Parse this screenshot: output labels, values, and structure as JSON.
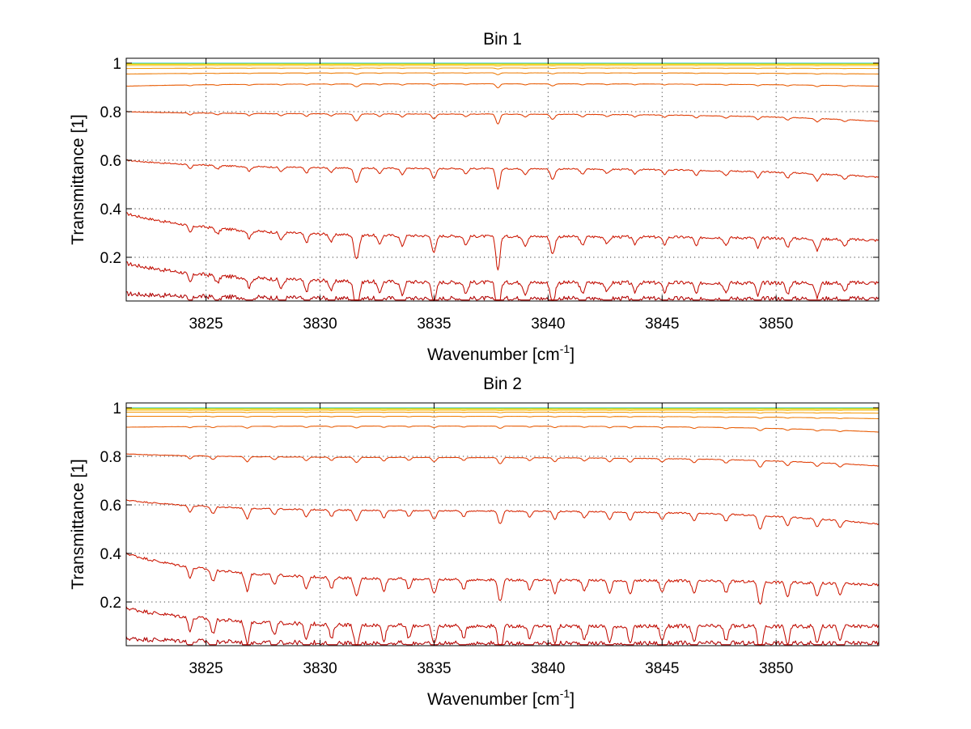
{
  "chart_data": [
    {
      "type": "line",
      "title": "Bin 1",
      "xlabel": "Wavenumber [cm",
      "xlabel_sup": "-1",
      "xlabel_end": "]",
      "ylabel": "Transmittance [1]",
      "xlim": [
        3821.5,
        3854.5
      ],
      "ylim": [
        0.02,
        1.02
      ],
      "xticks": [
        3825,
        3830,
        3835,
        3840,
        3845,
        3850
      ],
      "xtick_labels": [
        "3825",
        "3830",
        "3835",
        "3840",
        "3845",
        "3850"
      ],
      "yticks": [
        0.2,
        0.4,
        0.6,
        0.8,
        1.0
      ],
      "ytick_labels": [
        "0.2",
        "0.4",
        "0.6",
        "0.8",
        "1"
      ],
      "grid": true,
      "line_dips": [
        {
          "x": 3824.3,
          "d": 0.5,
          "w": 0.12
        },
        {
          "x": 3825.5,
          "d": 0.4,
          "w": 0.12
        },
        {
          "x": 3826.9,
          "d": 0.5,
          "w": 0.12
        },
        {
          "x": 3828.3,
          "d": 0.5,
          "w": 0.12
        },
        {
          "x": 3829.4,
          "d": 0.6,
          "w": 0.12
        },
        {
          "x": 3830.5,
          "d": 0.5,
          "w": 0.12
        },
        {
          "x": 3831.6,
          "d": 1.6,
          "w": 0.15
        },
        {
          "x": 3832.6,
          "d": 0.6,
          "w": 0.12
        },
        {
          "x": 3833.6,
          "d": 0.7,
          "w": 0.12
        },
        {
          "x": 3835.0,
          "d": 1.1,
          "w": 0.13
        },
        {
          "x": 3836.4,
          "d": 0.6,
          "w": 0.12
        },
        {
          "x": 3837.8,
          "d": 2.3,
          "w": 0.12
        },
        {
          "x": 3839.0,
          "d": 0.6,
          "w": 0.12
        },
        {
          "x": 3840.2,
          "d": 1.2,
          "w": 0.13
        },
        {
          "x": 3841.5,
          "d": 0.6,
          "w": 0.12
        },
        {
          "x": 3842.6,
          "d": 0.5,
          "w": 0.12
        },
        {
          "x": 3843.8,
          "d": 0.5,
          "w": 0.12
        },
        {
          "x": 3845.1,
          "d": 0.5,
          "w": 0.12
        },
        {
          "x": 3846.5,
          "d": 0.6,
          "w": 0.12
        },
        {
          "x": 3847.8,
          "d": 0.5,
          "w": 0.12
        },
        {
          "x": 3849.2,
          "d": 0.7,
          "w": 0.12
        },
        {
          "x": 3850.5,
          "d": 0.6,
          "w": 0.12
        },
        {
          "x": 3851.8,
          "d": 0.8,
          "w": 0.13
        },
        {
          "x": 3853.0,
          "d": 0.5,
          "w": 0.12
        }
      ],
      "series": [
        {
          "color": "#b00000",
          "start": 0.05,
          "base": 0.03,
          "end": 0.03
        },
        {
          "color": "#c00a00",
          "start": 0.175,
          "base": 0.095,
          "end": 0.095
        },
        {
          "color": "#cc1500",
          "start": 0.38,
          "base": 0.285,
          "end": 0.27
        },
        {
          "color": "#d62500",
          "start": 0.6,
          "base": 0.565,
          "end": 0.53
        },
        {
          "color": "#e03a00",
          "start": 0.8,
          "base": 0.79,
          "end": 0.76
        },
        {
          "color": "#e85a00",
          "start": 0.905,
          "base": 0.915,
          "end": 0.905
        },
        {
          "color": "#ee7a00",
          "start": 0.955,
          "base": 0.96,
          "end": 0.955
        },
        {
          "color": "#f29800",
          "start": 0.978,
          "base": 0.98,
          "end": 0.978
        },
        {
          "color": "#f5b400",
          "start": 0.99,
          "base": 0.99,
          "end": 0.99
        },
        {
          "color": "#f5d000",
          "start": 0.995,
          "base": 0.995,
          "end": 0.995
        },
        {
          "color": "#e8e000",
          "start": 0.998,
          "base": 0.998,
          "end": 0.998
        },
        {
          "color": "#30c8d0",
          "start": 1.0,
          "base": 1.0,
          "end": 1.0
        }
      ]
    },
    {
      "type": "line",
      "title": "Bin 2",
      "xlabel": "Wavenumber [cm",
      "xlabel_sup": "-1",
      "xlabel_end": "]",
      "ylabel": "Transmittance [1]",
      "xlim": [
        3821.5,
        3854.5
      ],
      "ylim": [
        0.02,
        1.02
      ],
      "xticks": [
        3825,
        3830,
        3835,
        3840,
        3845,
        3850
      ],
      "xtick_labels": [
        "3825",
        "3830",
        "3835",
        "3840",
        "3845",
        "3850"
      ],
      "yticks": [
        0.2,
        0.4,
        0.6,
        0.8,
        1.0
      ],
      "ytick_labels": [
        "0.2",
        "0.4",
        "0.6",
        "0.8",
        "1"
      ],
      "grid": true,
      "line_dips": [
        {
          "x": 3824.3,
          "d": 0.7,
          "w": 0.12
        },
        {
          "x": 3825.3,
          "d": 0.8,
          "w": 0.12
        },
        {
          "x": 3826.8,
          "d": 1.2,
          "w": 0.13
        },
        {
          "x": 3828.0,
          "d": 0.7,
          "w": 0.12
        },
        {
          "x": 3829.4,
          "d": 0.9,
          "w": 0.12
        },
        {
          "x": 3830.5,
          "d": 0.8,
          "w": 0.12
        },
        {
          "x": 3831.6,
          "d": 1.3,
          "w": 0.14
        },
        {
          "x": 3832.8,
          "d": 0.8,
          "w": 0.12
        },
        {
          "x": 3833.9,
          "d": 0.7,
          "w": 0.12
        },
        {
          "x": 3835.0,
          "d": 1.0,
          "w": 0.13
        },
        {
          "x": 3836.3,
          "d": 0.7,
          "w": 0.12
        },
        {
          "x": 3837.9,
          "d": 1.5,
          "w": 0.13
        },
        {
          "x": 3839.2,
          "d": 0.7,
          "w": 0.12
        },
        {
          "x": 3840.3,
          "d": 0.9,
          "w": 0.12
        },
        {
          "x": 3841.6,
          "d": 0.7,
          "w": 0.12
        },
        {
          "x": 3842.7,
          "d": 0.9,
          "w": 0.12
        },
        {
          "x": 3843.6,
          "d": 1.0,
          "w": 0.12
        },
        {
          "x": 3845.0,
          "d": 0.8,
          "w": 0.12
        },
        {
          "x": 3846.4,
          "d": 0.9,
          "w": 0.12
        },
        {
          "x": 3847.8,
          "d": 0.8,
          "w": 0.12
        },
        {
          "x": 3849.3,
          "d": 1.6,
          "w": 0.13
        },
        {
          "x": 3850.5,
          "d": 1.0,
          "w": 0.12
        },
        {
          "x": 3851.8,
          "d": 0.9,
          "w": 0.12
        },
        {
          "x": 3852.8,
          "d": 0.8,
          "w": 0.12
        }
      ],
      "series": [
        {
          "color": "#b00000",
          "start": 0.05,
          "base": 0.03,
          "end": 0.03
        },
        {
          "color": "#c00a00",
          "start": 0.175,
          "base": 0.1,
          "end": 0.1
        },
        {
          "color": "#cc1500",
          "start": 0.4,
          "base": 0.29,
          "end": 0.27
        },
        {
          "color": "#d62500",
          "start": 0.62,
          "base": 0.575,
          "end": 0.52
        },
        {
          "color": "#e03a00",
          "start": 0.81,
          "base": 0.795,
          "end": 0.76
        },
        {
          "color": "#e85a00",
          "start": 0.92,
          "base": 0.925,
          "end": 0.9
        },
        {
          "color": "#ee7a00",
          "start": 0.965,
          "base": 0.965,
          "end": 0.955
        },
        {
          "color": "#f29800",
          "start": 0.982,
          "base": 0.982,
          "end": 0.978
        },
        {
          "color": "#f5b400",
          "start": 0.99,
          "base": 0.99,
          "end": 0.99
        },
        {
          "color": "#f5d000",
          "start": 0.995,
          "base": 0.995,
          "end": 0.995
        },
        {
          "color": "#e8e000",
          "start": 0.998,
          "base": 0.998,
          "end": 0.998
        },
        {
          "color": "#30c8d0",
          "start": 1.0,
          "base": 1.0,
          "end": 1.0
        }
      ]
    }
  ]
}
